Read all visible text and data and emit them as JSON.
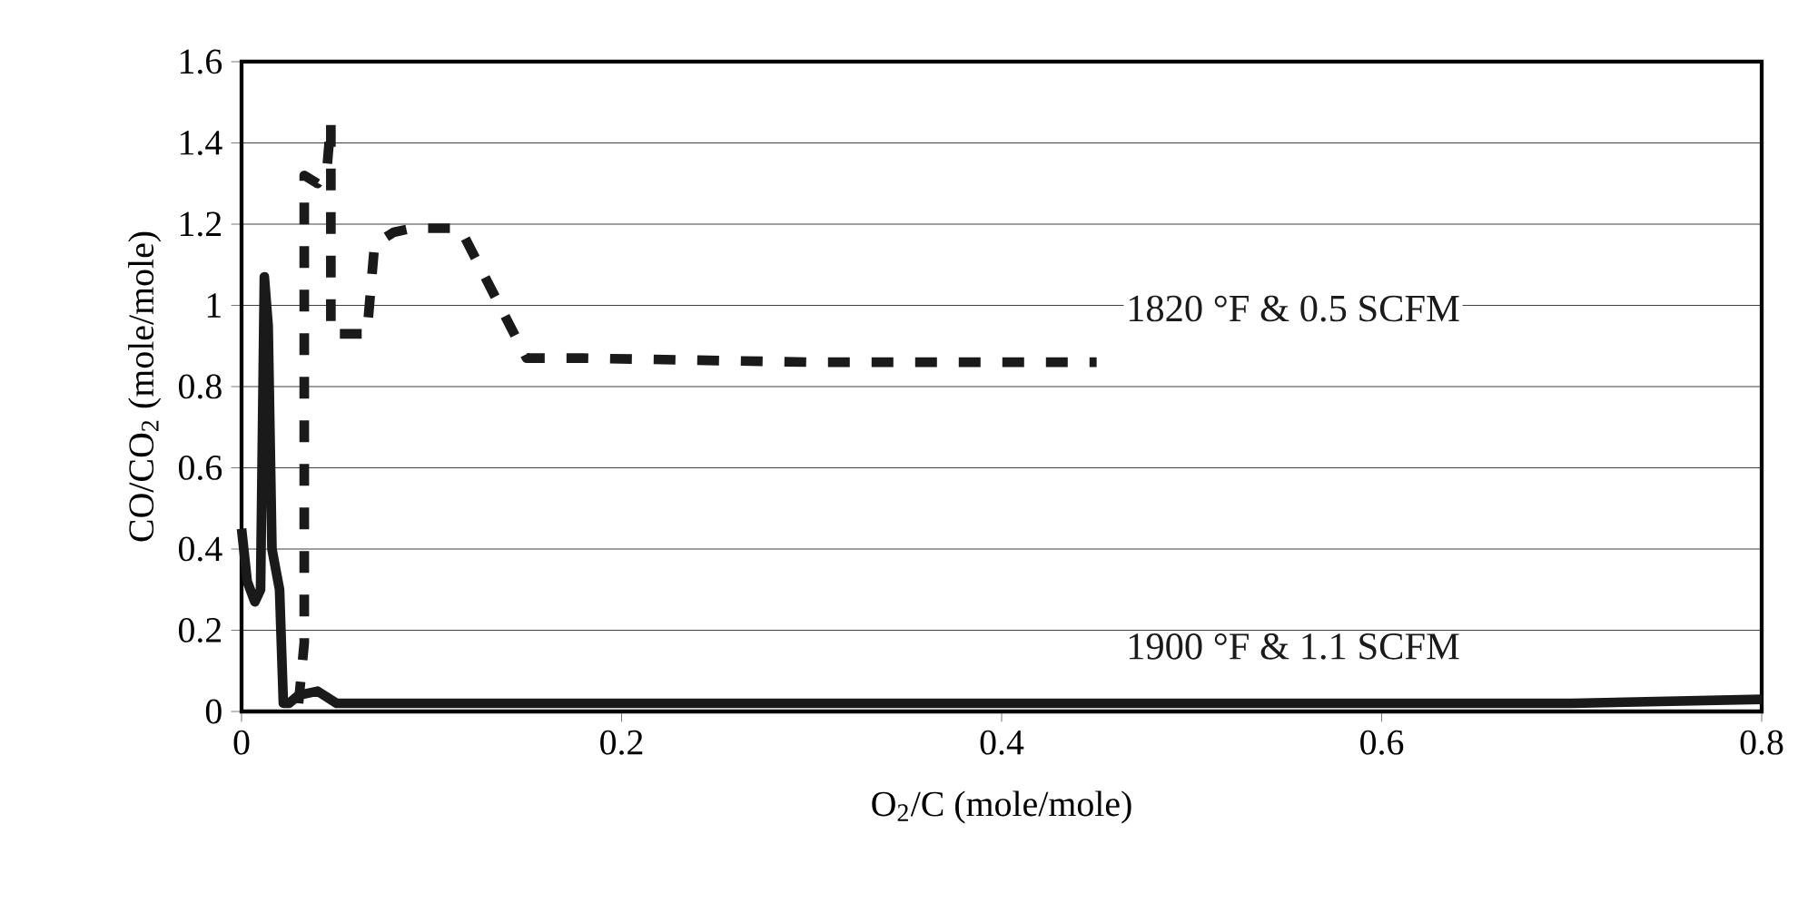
{
  "chart_data": {
    "type": "line",
    "xlabel": "O$_{2}$/C (mole/mole)",
    "ylabel": "CO/CO$_{2}$ (mole/mole)",
    "xlim": [
      0,
      0.8
    ],
    "ylim": [
      0,
      1.6
    ],
    "xticks": [
      0,
      0.2,
      0.4,
      0.6,
      0.8
    ],
    "yticks": [
      0,
      0.2,
      0.4,
      0.6,
      0.8,
      1,
      1.2,
      1.4,
      1.6
    ],
    "grid": "y",
    "series": [
      {
        "name": "1820 °F & 0.5 SCFM",
        "color": "#1a1a1a",
        "line_style": "dashed",
        "x": [
          0.03,
          0.033,
          0.033,
          0.033,
          0.033,
          0.033,
          0.033,
          0.033,
          0.04,
          0.045,
          0.047,
          0.047,
          0.047,
          0.047,
          0.066,
          0.07,
          0.08,
          0.09,
          0.115,
          0.15,
          0.18,
          0.3,
          0.45
        ],
        "values": [
          0.02,
          0.17,
          0.35,
          0.54,
          0.71,
          0.9,
          1.11,
          1.32,
          1.3,
          1.34,
          1.45,
          1.15,
          0.93,
          0.93,
          0.93,
          1.15,
          1.18,
          1.19,
          1.19,
          0.87,
          0.87,
          0.86,
          0.86
        ]
      },
      {
        "name": "1900 °F & 1.1 SCFM",
        "color": "#1a1a1a",
        "line_style": "solid",
        "x": [
          0,
          0.003,
          0.007,
          0.01,
          0.012,
          0.014,
          0.016,
          0.018,
          0.02,
          0.022,
          0.025,
          0.03,
          0.04,
          0.05,
          0.1,
          0.2,
          0.3,
          0.4,
          0.5,
          0.6,
          0.7,
          0.8
        ],
        "values": [
          0.45,
          0.32,
          0.27,
          0.3,
          1.07,
          0.95,
          0.4,
          0.35,
          0.3,
          0.02,
          0.02,
          0.04,
          0.05,
          0.02,
          0.02,
          0.02,
          0.02,
          0.02,
          0.02,
          0.02,
          0.02,
          0.03
        ]
      }
    ]
  }
}
